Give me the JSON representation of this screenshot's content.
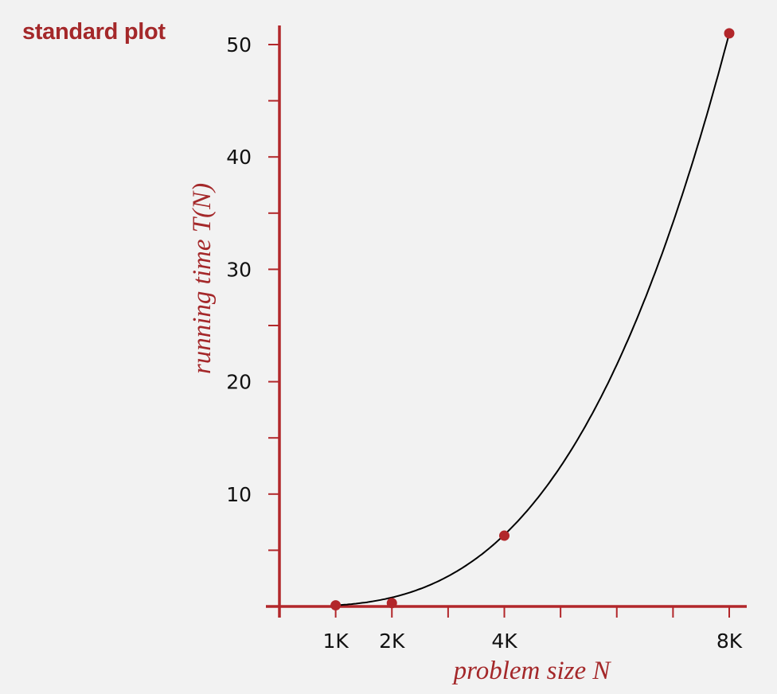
{
  "title": "standard plot",
  "chart_data": {
    "type": "line",
    "title": "standard plot",
    "xlabel": "problem size N",
    "ylabel": "running time T(N)",
    "x_tick_labels": [
      {
        "value": 1000,
        "label": "1K"
      },
      {
        "value": 2000,
        "label": "2K"
      },
      {
        "value": 4000,
        "label": "4K"
      },
      {
        "value": 8000,
        "label": "8K"
      }
    ],
    "x_minor_ticks": [
      3000,
      5000,
      6000,
      7000
    ],
    "y_tick_labels": [
      {
        "value": 10,
        "label": "10"
      },
      {
        "value": 20,
        "label": "20"
      },
      {
        "value": 30,
        "label": "30"
      },
      {
        "value": 40,
        "label": "40"
      },
      {
        "value": 50,
        "label": "50"
      }
    ],
    "y_minor_ticks": [
      5,
      15,
      25,
      35,
      45
    ],
    "xlim": [
      0,
      8000
    ],
    "ylim": [
      0,
      50
    ],
    "points": [
      {
        "x": 1000,
        "y": 0.1
      },
      {
        "x": 2000,
        "y": 0.3
      },
      {
        "x": 4000,
        "y": 6.3
      },
      {
        "x": 8000,
        "y": 51.0
      }
    ],
    "colors": {
      "axis": "#b2272b",
      "curve": "#000000",
      "points": "#b2272b"
    },
    "grid": false
  }
}
